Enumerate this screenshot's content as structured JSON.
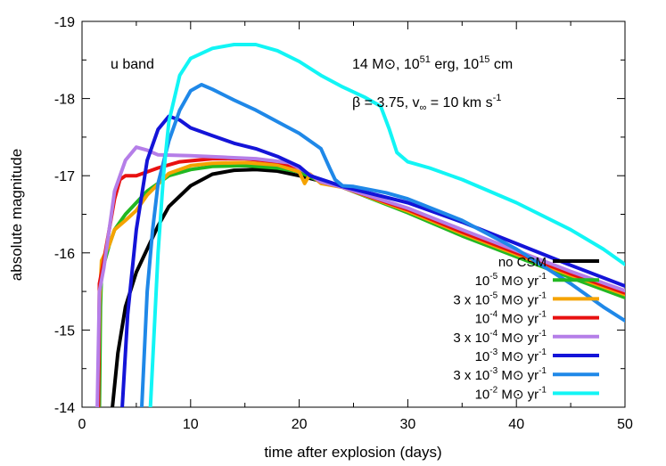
{
  "chart_data": {
    "type": "line",
    "title": "",
    "xlabel": "time after explosion (days)",
    "ylabel": "absolute magnitude",
    "xlim": [
      0,
      50
    ],
    "ylim": [
      -14,
      -19
    ],
    "y_inverted": true,
    "x_ticks": [
      0,
      10,
      20,
      30,
      40,
      50
    ],
    "y_ticks": [
      -14,
      -15,
      -16,
      -17,
      -18,
      -19
    ],
    "grid": false,
    "legend_position": "bottom-right",
    "annotations": {
      "band": "u band",
      "params_line1": {
        "mass": "14 M",
        "sun": "⊙",
        "energy_pre": ", 10",
        "energy_exp": "51",
        "energy_post": " erg, 10",
        "radius_exp": "15",
        "radius_post": " cm"
      },
      "params_line2": {
        "beta": "β = 3.75, v",
        "inf": "∞",
        "vel": " = 10 km s",
        "vel_exp": "-1"
      }
    },
    "series": [
      {
        "name": "no CSM",
        "legend": {
          "pre": "no CSM",
          "sup": "",
          "mid": "",
          "tail": ""
        },
        "color": "#000000",
        "points": [
          [
            2.8,
            -14
          ],
          [
            3.3,
            -14.7
          ],
          [
            4,
            -15.3
          ],
          [
            5,
            -15.75
          ],
          [
            6,
            -16.05
          ],
          [
            7,
            -16.35
          ],
          [
            8,
            -16.6
          ],
          [
            10,
            -16.87
          ],
          [
            12,
            -17.02
          ],
          [
            14,
            -17.07
          ],
          [
            16,
            -17.08
          ],
          [
            18,
            -17.06
          ],
          [
            20,
            -17.0
          ],
          [
            22,
            -16.93
          ],
          [
            24,
            -16.85
          ],
          [
            30,
            -16.55
          ],
          [
            35,
            -16.25
          ],
          [
            40,
            -15.98
          ],
          [
            45,
            -15.72
          ],
          [
            50,
            -15.48
          ]
        ]
      },
      {
        "name": "10^-5 Msun/yr",
        "legend": {
          "pre": "10",
          "sup": "-5",
          "mid": " M⊙ yr",
          "tail": "-1"
        },
        "color": "#22b822",
        "points": [
          [
            1.6,
            -14
          ],
          [
            1.7,
            -15.3
          ],
          [
            1.8,
            -15.75
          ],
          [
            2,
            -15.85
          ],
          [
            2.5,
            -16.1
          ],
          [
            3,
            -16.3
          ],
          [
            4,
            -16.5
          ],
          [
            6,
            -16.8
          ],
          [
            8,
            -17.0
          ],
          [
            10,
            -17.08
          ],
          [
            12,
            -17.12
          ],
          [
            15,
            -17.13
          ],
          [
            18,
            -17.1
          ],
          [
            20,
            -17.05
          ],
          [
            22,
            -16.92
          ],
          [
            24,
            -16.85
          ],
          [
            30,
            -16.52
          ],
          [
            35,
            -16.22
          ],
          [
            40,
            -15.95
          ],
          [
            45,
            -15.68
          ],
          [
            50,
            -15.42
          ]
        ]
      },
      {
        "name": "3 x 10^-5 Msun/yr",
        "legend": {
          "pre": "3 x 10",
          "sup": "-5",
          "mid": " M⊙ yr",
          "tail": "-1"
        },
        "color": "#f5a300",
        "points": [
          [
            1.5,
            -14
          ],
          [
            1.6,
            -15.3
          ],
          [
            1.8,
            -15.9
          ],
          [
            2.5,
            -16.1
          ],
          [
            3,
            -16.3
          ],
          [
            4,
            -16.42
          ],
          [
            5,
            -16.55
          ],
          [
            6,
            -16.75
          ],
          [
            8,
            -17.03
          ],
          [
            10,
            -17.13
          ],
          [
            12,
            -17.16
          ],
          [
            15,
            -17.17
          ],
          [
            18,
            -17.14
          ],
          [
            20,
            -17.05
          ],
          [
            20.5,
            -16.9
          ],
          [
            21,
            -17.02
          ],
          [
            22,
            -16.9
          ],
          [
            24,
            -16.85
          ],
          [
            30,
            -16.54
          ],
          [
            35,
            -16.25
          ],
          [
            40,
            -15.98
          ],
          [
            45,
            -15.71
          ],
          [
            50,
            -15.46
          ]
        ]
      },
      {
        "name": "10^-4 Msun/yr",
        "legend": {
          "pre": "10",
          "sup": "-4",
          "mid": " M⊙ yr",
          "tail": "-1"
        },
        "color": "#e81010",
        "points": [
          [
            1.5,
            -14
          ],
          [
            1.6,
            -15.6
          ],
          [
            2,
            -15.9
          ],
          [
            2.5,
            -16.3
          ],
          [
            3,
            -16.7
          ],
          [
            3.5,
            -16.95
          ],
          [
            4,
            -17.0
          ],
          [
            5,
            -17.0
          ],
          [
            7,
            -17.1
          ],
          [
            9,
            -17.18
          ],
          [
            12,
            -17.22
          ],
          [
            15,
            -17.22
          ],
          [
            18,
            -17.18
          ],
          [
            20,
            -17.1
          ],
          [
            22,
            -16.92
          ],
          [
            24,
            -16.85
          ],
          [
            30,
            -16.56
          ],
          [
            35,
            -16.27
          ],
          [
            40,
            -16.0
          ],
          [
            45,
            -15.73
          ],
          [
            50,
            -15.48
          ]
        ]
      },
      {
        "name": "3 x 10^-4 Msun/yr",
        "legend": {
          "pre": "3 x 10",
          "sup": "-4",
          "mid": " M⊙ yr",
          "tail": "-1"
        },
        "color": "#b57ee8",
        "points": [
          [
            1.4,
            -14
          ],
          [
            1.6,
            -15.5
          ],
          [
            2,
            -15.8
          ],
          [
            2.5,
            -16.3
          ],
          [
            3,
            -16.8
          ],
          [
            4,
            -17.2
          ],
          [
            5,
            -17.37
          ],
          [
            6,
            -17.33
          ],
          [
            7,
            -17.27
          ],
          [
            10,
            -17.26
          ],
          [
            13,
            -17.24
          ],
          [
            16,
            -17.22
          ],
          [
            19,
            -17.17
          ],
          [
            20,
            -17.1
          ],
          [
            22,
            -16.92
          ],
          [
            24,
            -16.85
          ],
          [
            30,
            -16.58
          ],
          [
            35,
            -16.3
          ],
          [
            40,
            -16.03
          ],
          [
            45,
            -15.76
          ],
          [
            50,
            -15.51
          ]
        ]
      },
      {
        "name": "10^-3 Msun/yr",
        "legend": {
          "pre": "10",
          "sup": "-3",
          "mid": " M⊙ yr",
          "tail": "-1"
        },
        "color": "#1414d8",
        "points": [
          [
            3.7,
            -14
          ],
          [
            4.2,
            -15.2
          ],
          [
            5,
            -16.3
          ],
          [
            6,
            -17.2
          ],
          [
            7,
            -17.6
          ],
          [
            8,
            -17.77
          ],
          [
            9,
            -17.72
          ],
          [
            10,
            -17.62
          ],
          [
            12,
            -17.52
          ],
          [
            14,
            -17.42
          ],
          [
            16,
            -17.35
          ],
          [
            18,
            -17.25
          ],
          [
            20,
            -17.12
          ],
          [
            21,
            -17.0
          ],
          [
            24,
            -16.86
          ],
          [
            30,
            -16.65
          ],
          [
            35,
            -16.4
          ],
          [
            40,
            -16.12
          ],
          [
            45,
            -15.84
          ],
          [
            50,
            -15.57
          ]
        ]
      },
      {
        "name": "3 x 10^-3 Msun/yr",
        "legend": {
          "pre": "3 x 10",
          "sup": "-3",
          "mid": " M⊙ yr",
          "tail": "-1"
        },
        "color": "#1f88e8",
        "points": [
          [
            5.5,
            -14
          ],
          [
            6,
            -15.5
          ],
          [
            6.5,
            -16.3
          ],
          [
            7,
            -16.9
          ],
          [
            8,
            -17.45
          ],
          [
            9,
            -17.85
          ],
          [
            10,
            -18.1
          ],
          [
            11,
            -18.18
          ],
          [
            12,
            -18.12
          ],
          [
            14,
            -17.98
          ],
          [
            16,
            -17.85
          ],
          [
            18,
            -17.7
          ],
          [
            20,
            -17.55
          ],
          [
            22,
            -17.35
          ],
          [
            22.8,
            -17.1
          ],
          [
            23.3,
            -16.95
          ],
          [
            24,
            -16.87
          ],
          [
            25,
            -16.86
          ],
          [
            28,
            -16.78
          ],
          [
            30,
            -16.7
          ],
          [
            35,
            -16.42
          ],
          [
            40,
            -16.05
          ],
          [
            45,
            -15.6
          ],
          [
            48,
            -15.3
          ],
          [
            50,
            -15.12
          ]
        ]
      },
      {
        "name": "10^-2 Msun/yr",
        "legend": {
          "pre": "10",
          "sup": "-2",
          "mid": " M⊙ yr",
          "tail": "-1"
        },
        "color": "#12f5f5",
        "points": [
          [
            6.3,
            -14
          ],
          [
            7,
            -16
          ],
          [
            7.5,
            -17.0
          ],
          [
            8,
            -17.7
          ],
          [
            9,
            -18.3
          ],
          [
            10,
            -18.52
          ],
          [
            12,
            -18.65
          ],
          [
            14,
            -18.7
          ],
          [
            16,
            -18.7
          ],
          [
            18,
            -18.62
          ],
          [
            20,
            -18.48
          ],
          [
            22,
            -18.3
          ],
          [
            24,
            -18.15
          ],
          [
            26,
            -18.02
          ],
          [
            27.5,
            -17.9
          ],
          [
            28.3,
            -17.6
          ],
          [
            29,
            -17.3
          ],
          [
            30,
            -17.18
          ],
          [
            32,
            -17.1
          ],
          [
            35,
            -16.95
          ],
          [
            40,
            -16.65
          ],
          [
            45,
            -16.3
          ],
          [
            48,
            -16.05
          ],
          [
            50,
            -15.85
          ]
        ]
      }
    ]
  }
}
